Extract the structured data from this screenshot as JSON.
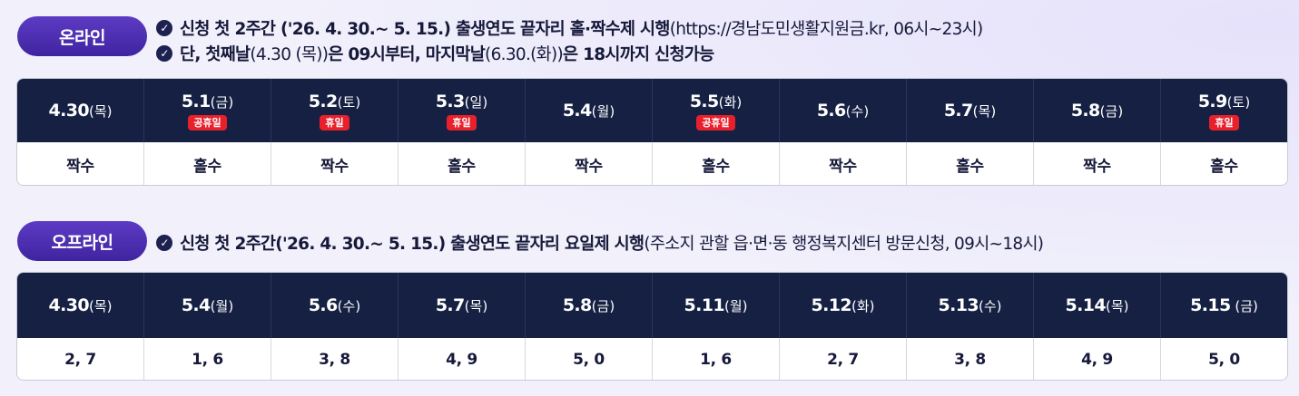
{
  "online": {
    "label": "온라인",
    "notes": [
      {
        "bold": "신청 첫 2주간 ('26. 4. 30.~ 5. 15.) 출생연도 끝자리 홀·짝수제 시행",
        "light": "(https://경남도민생활지원금.kr, 06시~23시)"
      },
      {
        "bold": "단, 첫째날",
        "light": "(4.30 (목))",
        "bold2": "은 09시부터, 마지막날",
        "light2": "(6.30.(화))",
        "bold3": "은 18시까지 신청가능"
      }
    ],
    "days": [
      {
        "num": "4.30",
        "dow": "(목)",
        "badge": "",
        "value": "짝수"
      },
      {
        "num": "5.1",
        "dow": "(금)",
        "badge": "공휴일",
        "value": "홀수"
      },
      {
        "num": "5.2",
        "dow": "(토)",
        "badge": "휴일",
        "value": "짝수"
      },
      {
        "num": "5.3",
        "dow": "(일)",
        "badge": "휴일",
        "value": "홀수"
      },
      {
        "num": "5.4",
        "dow": "(월)",
        "badge": "",
        "value": "짝수"
      },
      {
        "num": "5.5",
        "dow": "(화)",
        "badge": "공휴일",
        "value": "홀수"
      },
      {
        "num": "5.6",
        "dow": "(수)",
        "badge": "",
        "value": "짝수"
      },
      {
        "num": "5.7",
        "dow": "(목)",
        "badge": "",
        "value": "홀수"
      },
      {
        "num": "5.8",
        "dow": "(금)",
        "badge": "",
        "value": "짝수"
      },
      {
        "num": "5.9",
        "dow": "(토)",
        "badge": "휴일",
        "value": "홀수"
      }
    ]
  },
  "offline": {
    "label": "오프라인",
    "notes": [
      {
        "bold": "신청 첫 2주간('26. 4. 30.~ 5. 15.) 출생연도 끝자리 요일제 시행",
        "light": "(주소지 관할 읍·면·동 행정복지센터 방문신청, 09시~18시)"
      }
    ],
    "days": [
      {
        "num": "4.30",
        "dow": "(목)",
        "value": "2, 7"
      },
      {
        "num": "5.4",
        "dow": "(월)",
        "value": "1, 6"
      },
      {
        "num": "5.6",
        "dow": "(수)",
        "value": "3, 8"
      },
      {
        "num": "5.7",
        "dow": "(목)",
        "value": "4, 9"
      },
      {
        "num": "5.8",
        "dow": "(금)",
        "value": "5, 0"
      },
      {
        "num": "5.11",
        "dow": "(월)",
        "value": "1, 6"
      },
      {
        "num": "5.12",
        "dow": "(화)",
        "value": "2, 7"
      },
      {
        "num": "5.13",
        "dow": "(수)",
        "value": "3, 8"
      },
      {
        "num": "5.14",
        "dow": "(목)",
        "value": "4, 9"
      },
      {
        "num": "5.15",
        "dow": " (금)",
        "value": "5, 0"
      }
    ]
  },
  "icons": {
    "check": "check-circle-icon"
  },
  "colors": {
    "pill": "#4a2db0",
    "header": "#152043",
    "badge": "#e8202c"
  }
}
